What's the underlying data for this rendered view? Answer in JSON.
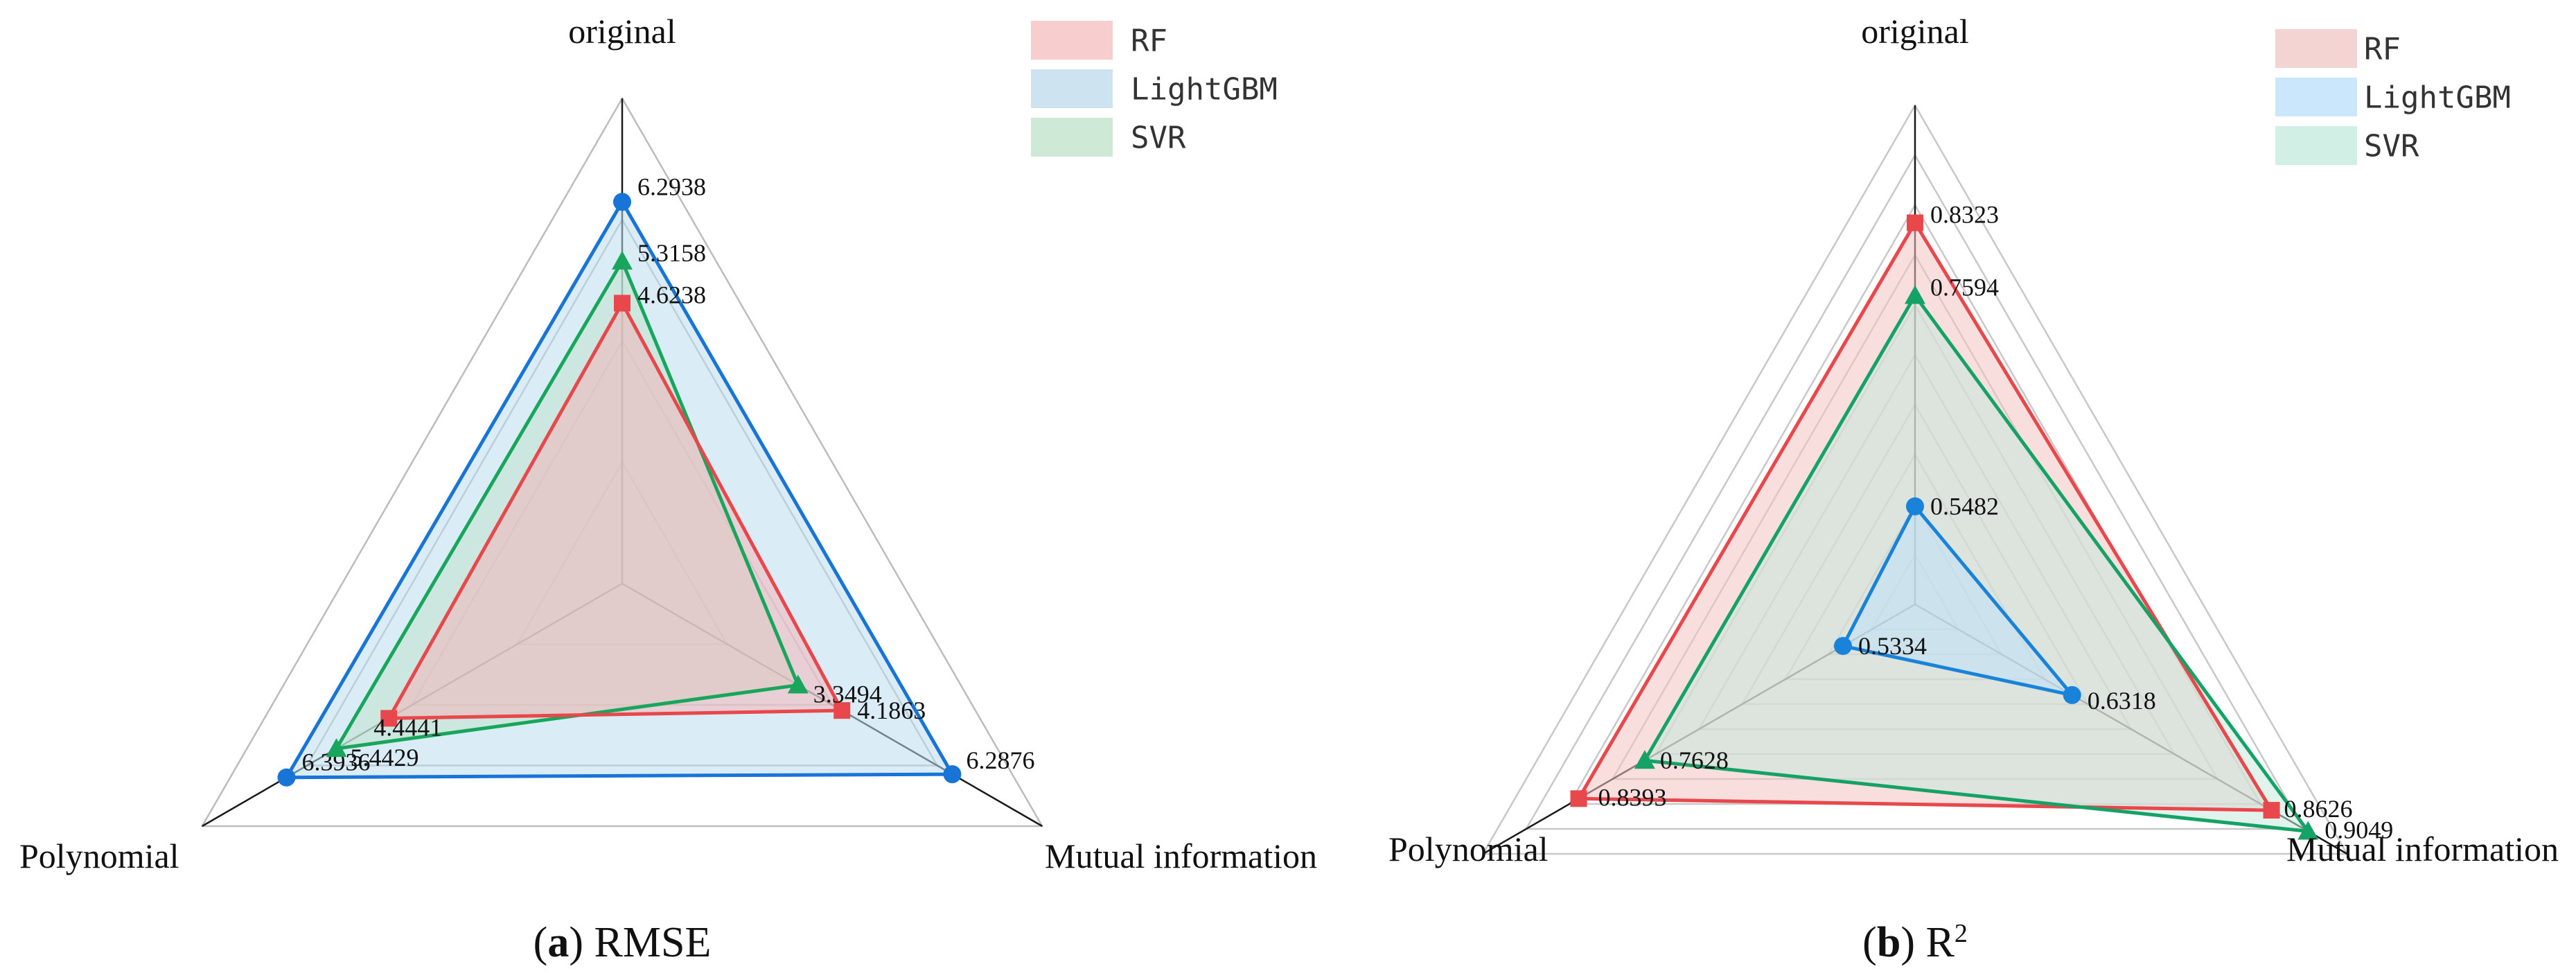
{
  "chart_data": [
    {
      "type": "radar",
      "caption_letter": "a",
      "caption_text": "RMSE",
      "axes": [
        "original",
        "Mutual information",
        "Polynomial"
      ],
      "range": [
        0,
        8
      ],
      "grid_rings": 4,
      "legend_position": "top-right",
      "series": [
        {
          "name": "RF",
          "values": [
            4.6238,
            4.1863,
            4.4441
          ],
          "labels": [
            "4.6238",
            "4.1863",
            "4.4441"
          ],
          "color": "#e8474b",
          "fill": "#f4b6b9",
          "marker": "square"
        },
        {
          "name": "LightGBM",
          "values": [
            6.2938,
            6.2876,
            6.3936
          ],
          "labels": [
            "6.2938",
            "6.2876",
            "6.3936"
          ],
          "color": "#1874d6",
          "fill": "#bcdcee",
          "marker": "circle"
        },
        {
          "name": "SVR",
          "values": [
            5.3158,
            3.3494,
            5.4429
          ],
          "labels": [
            "5.3158",
            "3.3494",
            "5.4429"
          ],
          "color": "#17a65c",
          "fill": "#bfe3cc",
          "marker": "triangle"
        }
      ]
    },
    {
      "type": "radar",
      "caption_letter": "b",
      "caption_text": "R",
      "caption_sup": "2",
      "axes": [
        "original",
        "Mutual information",
        "Polynomial"
      ],
      "range": [
        0.45,
        0.95
      ],
      "grid_rings": 10,
      "legend_position": "top-right",
      "series": [
        {
          "name": "RF",
          "values": [
            0.8323,
            0.8626,
            0.8393
          ],
          "labels": [
            "0.8323",
            "0.8626",
            "0.8393"
          ],
          "color": "#e8474b",
          "fill": "#f4c3c3",
          "marker": "square"
        },
        {
          "name": "LightGBM",
          "values": [
            0.5482,
            0.6318,
            0.5334
          ],
          "labels": [
            "0.5482",
            "0.6318",
            "0.5334"
          ],
          "color": "#1883d8",
          "fill": "#bde0f7",
          "marker": "circle"
        },
        {
          "name": "SVR",
          "values": [
            0.7594,
            0.9049,
            0.7628
          ],
          "labels": [
            "0.7594",
            "0.9049",
            "0.7628"
          ],
          "color": "#15a266",
          "fill": "#c6e9dc",
          "marker": "triangle"
        }
      ]
    }
  ]
}
